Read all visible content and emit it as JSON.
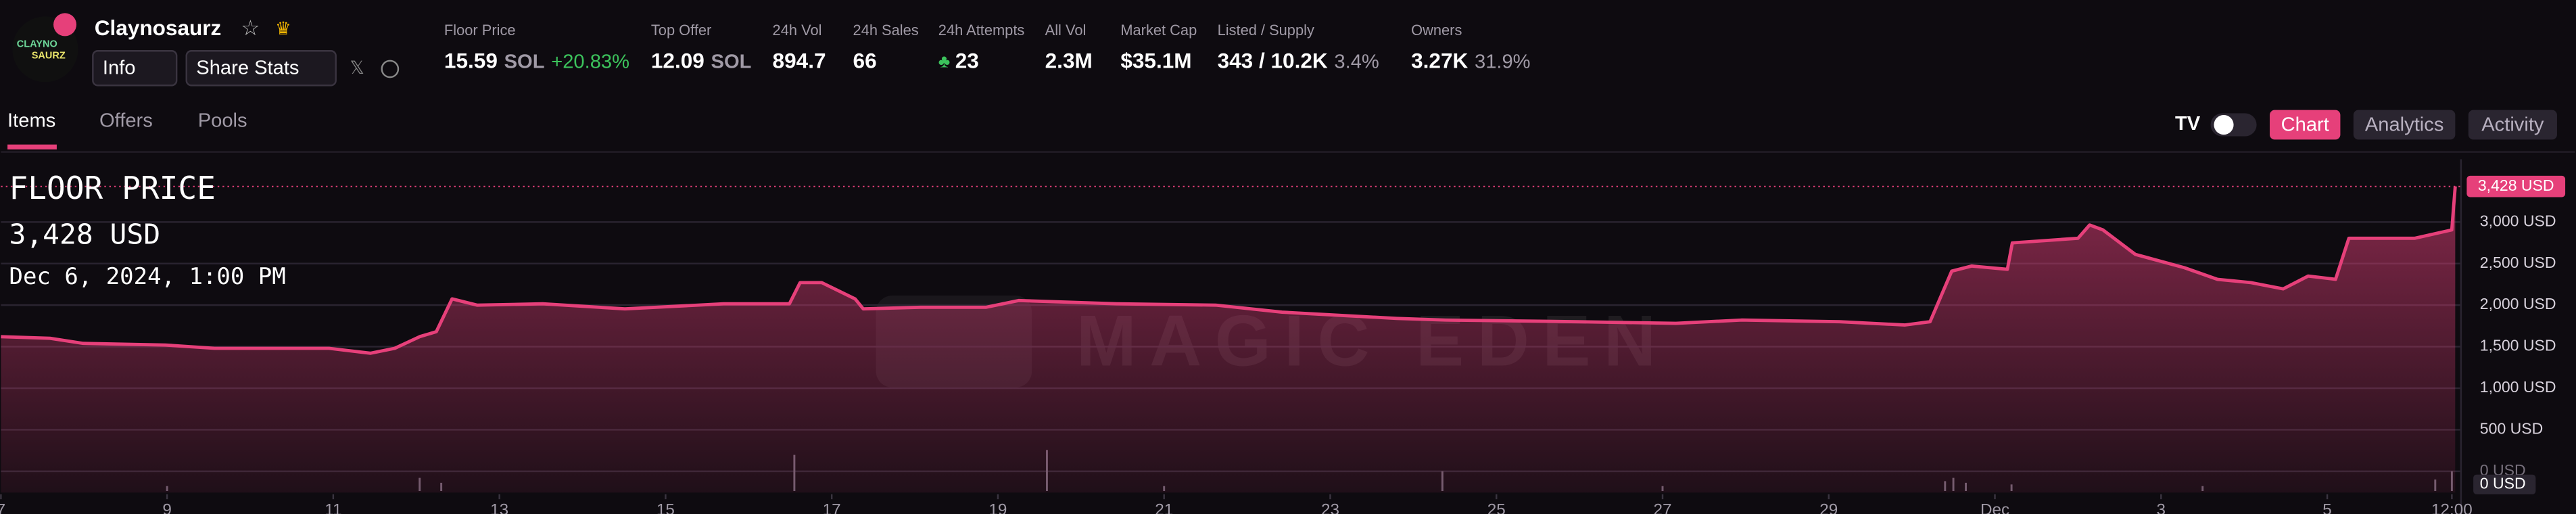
{
  "header": {
    "name": "Claynosaurz",
    "logo_text": [
      "CLAYNO",
      "SAURZ"
    ],
    "buttons": [
      "Info",
      "Share Stats"
    ],
    "stats": [
      {
        "label": "Floor Price",
        "value": "15.59",
        "unit": "SOL",
        "change": "+20.83%"
      },
      {
        "label": "Top Offer",
        "value": "12.09",
        "unit": "SOL"
      },
      {
        "label": "24h Vol",
        "value": "894.7"
      },
      {
        "label": "24h Sales",
        "value": "66"
      },
      {
        "label": "24h Attempts",
        "value": "23"
      },
      {
        "label": "All Vol",
        "value": "2.3M"
      },
      {
        "label": "Market Cap",
        "value": "$35.1M"
      },
      {
        "label": "Listed / Supply",
        "value": "343 / 10.2K",
        "extra": "3.4%"
      },
      {
        "label": "Owners",
        "value": "3.27K",
        "extra": "31.9%"
      }
    ]
  },
  "tabs": [
    "Items",
    "Offers",
    "Pools"
  ],
  "view_buttons": [
    "Chart",
    "Analytics",
    "Activity"
  ],
  "chart_data": {
    "type": "line",
    "title": "FLOOR PRICE",
    "last_label": "3,428 USD",
    "date": "Dec 6, 2024, 1:00 PM",
    "watermark": "MAGIC EDEN",
    "color": "#e6407a",
    "grid": true,
    "x": [
      0,
      0.59,
      0.99,
      1.98,
      2.57,
      3.95,
      4.45,
      4.74,
      5.04,
      5.24,
      5.43,
      5.73,
      6.52,
      7.51,
      8.7,
      9.49,
      9.62,
      9.88,
      10.28,
      10.38,
      11.07,
      11.86,
      12.25,
      13.44,
      14.62,
      15.42,
      16.8,
      17.39,
      18.97,
      20.16,
      20.95,
      22.13,
      22.92,
      23.22,
      23.48,
      23.72,
      24.15,
      24.21,
      25,
      25.14,
      25.3,
      25.69,
      26.28,
      26.68,
      27.08,
      27.47,
      27.77,
      28.1,
      28.26,
      29.05,
      29.5,
      29.54
    ],
    "values": [
      1620,
      1600,
      1540,
      1520,
      1480,
      1480,
      1420,
      1480,
      1620,
      1680,
      2075,
      2000,
      2015,
      1955,
      2015,
      2015,
      2270,
      2270,
      2075,
      1955,
      1975,
      1975,
      2055,
      2015,
      2000,
      1915,
      1840,
      1820,
      1800,
      1780,
      1820,
      1800,
      1760,
      1800,
      2410,
      2470,
      2430,
      2750,
      2805,
      2965,
      2905,
      2610,
      2450,
      2310,
      2270,
      2195,
      2350,
      2310,
      2805,
      2805,
      2905,
      3428
    ],
    "xlim": [
      0,
      29.6
    ],
    "ylim": [
      -257,
      3755
    ],
    "xticks": [
      {
        "value": 0,
        "label": "7"
      },
      {
        "value": 2,
        "label": "9"
      },
      {
        "value": 4,
        "label": "11"
      },
      {
        "value": 6,
        "label": "13"
      },
      {
        "value": 8,
        "label": "15"
      },
      {
        "value": 10,
        "label": "17"
      },
      {
        "value": 12,
        "label": "19"
      },
      {
        "value": 14,
        "label": "21"
      },
      {
        "value": 16,
        "label": "23"
      },
      {
        "value": 18,
        "label": "25"
      },
      {
        "value": 20,
        "label": "27"
      },
      {
        "value": 22,
        "label": "29"
      },
      {
        "value": 24,
        "label": "Dec"
      },
      {
        "value": 26,
        "label": "3"
      },
      {
        "value": 28,
        "label": "5"
      },
      {
        "value": 29.5,
        "label": "12:00"
      }
    ],
    "yticks": [
      {
        "value": 0,
        "label": "0 USD"
      },
      {
        "value": 500,
        "label": "500 USD"
      },
      {
        "value": 1000,
        "label": "1,000 USD"
      },
      {
        "value": 1500,
        "label": "1,500 USD"
      },
      {
        "value": 2000,
        "label": "2,000 USD"
      },
      {
        "value": 2500,
        "label": "2,500 USD"
      },
      {
        "value": 3000,
        "label": "3,000 USD"
      }
    ],
    "volume": {
      "zero_label": "0 USD",
      "color": "#6a5f6e",
      "ylim": [
        0,
        100
      ],
      "x": [
        2,
        5.04,
        5.3,
        9.55,
        12.59,
        14,
        17.35,
        20,
        23.4,
        23.5,
        23.65,
        24.2,
        26.5,
        29.3,
        29.5
      ],
      "values": [
        3,
        8,
        5,
        22,
        25,
        3,
        12,
        3,
        6,
        8,
        5,
        4,
        3,
        7,
        12
      ]
    }
  }
}
